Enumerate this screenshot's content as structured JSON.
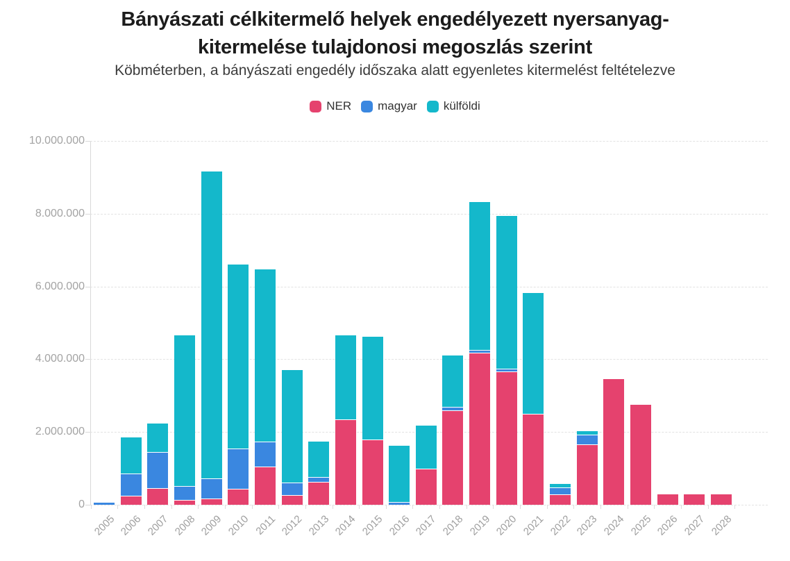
{
  "title_line1": "Bányászati célkitermelő helyek engedélyezett nyersanyag-",
  "title_line2": "kitermelése tulajdonosi megoszlás szerint",
  "subtitle": "Köbméterben, a bányászati engedély időszaka alatt egyenletes kitermelést feltételezve",
  "colors": {
    "ner": "#e5426e",
    "magyar": "#3a87e0",
    "kulfoldi": "#14b8cb",
    "grid": "#e2e2e2",
    "axis_text": "#a3a3a3"
  },
  "chart_data": {
    "type": "bar",
    "stacked": true,
    "title": "Bányászati célkitermelő helyek engedélyezett nyersanyag-kitermelése tulajdonosi megoszlás szerint",
    "subtitle": "Köbméterben, a bányászati engedély időszaka alatt egyenletes kitermelést feltételezve",
    "xlabel": "",
    "ylabel": "",
    "ylim": [
      0,
      10000000
    ],
    "grid": "horizontal-dashed",
    "legend_position": "top",
    "categories": [
      "2005",
      "2006",
      "2007",
      "2008",
      "2009",
      "2010",
      "2011",
      "2012",
      "2013",
      "2014",
      "2015",
      "2016",
      "2017",
      "2018",
      "2019",
      "2020",
      "2021",
      "2022",
      "2023",
      "2024",
      "2025",
      "2026",
      "2027",
      "2028"
    ],
    "ytick_values": [
      0,
      2000000,
      4000000,
      6000000,
      8000000,
      10000000
    ],
    "ytick_labels": [
      "0",
      "2.000.000",
      "4.000.000",
      "6.000.000",
      "8.000.000",
      "10.000.000"
    ],
    "series": [
      {
        "name": "NER",
        "key": "ner",
        "color": "#e5426e",
        "values": [
          0,
          220000,
          440000,
          120000,
          150000,
          420000,
          1030000,
          250000,
          620000,
          2330000,
          1780000,
          0,
          970000,
          2570000,
          4160000,
          3640000,
          2490000,
          270000,
          1650000,
          3450000,
          2750000,
          280000,
          280000,
          280000
        ]
      },
      {
        "name": "magyar",
        "key": "magyar",
        "color": "#3a87e0",
        "values": [
          50000,
          590000,
          980000,
          360000,
          540000,
          1090000,
          670000,
          320000,
          110000,
          0,
          0,
          50000,
          0,
          70000,
          60000,
          60000,
          0,
          170000,
          250000,
          0,
          0,
          0,
          0,
          0
        ]
      },
      {
        "name": "külföldi",
        "key": "kulfoldi",
        "color": "#14b8cb",
        "values": [
          0,
          1000000,
          780000,
          4150000,
          8430000,
          5060000,
          4740000,
          3090000,
          970000,
          2310000,
          2820000,
          1540000,
          1180000,
          1420000,
          4070000,
          4200000,
          3320000,
          90000,
          90000,
          0,
          0,
          0,
          0,
          0
        ]
      }
    ]
  }
}
